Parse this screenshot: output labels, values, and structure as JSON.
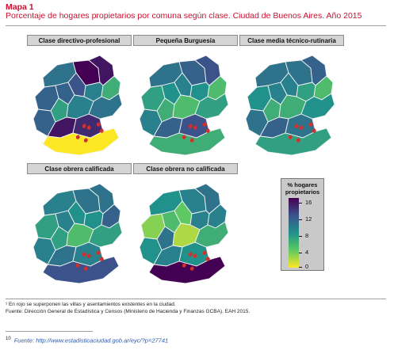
{
  "header": {
    "title": "Mapa 1",
    "subtitle": "Porcentaje de hogares propietarios por comuna según clase. Ciudad de Buenos Aires. Año 2015"
  },
  "panels": [
    {
      "label": "Clase directivo-profesional",
      "values": [
        10,
        16,
        15,
        11,
        11,
        12,
        9,
        6,
        7,
        9,
        10,
        11,
        15,
        14,
        0
      ]
    },
    {
      "label": "Pequeña Burguesía",
      "values": [
        10,
        11,
        12,
        7,
        8,
        9,
        8,
        5,
        6,
        5,
        7,
        9,
        11,
        12,
        6
      ]
    },
    {
      "label": "Clase media técnico-rutinaria",
      "values": [
        10,
        10,
        11,
        8,
        9,
        9,
        7,
        5,
        6,
        6,
        8,
        10,
        11,
        10,
        7
      ]
    },
    {
      "label": "Clase obrera calificada",
      "values": [
        9,
        10,
        10,
        7,
        9,
        8,
        8,
        11,
        7,
        5,
        7,
        9,
        10,
        9,
        12
      ]
    },
    {
      "label": "Clase obrera no calificada",
      "values": [
        8,
        9,
        10,
        3,
        5,
        4,
        9,
        9,
        10,
        2,
        6,
        8,
        9,
        8,
        16
      ]
    }
  ],
  "legend": {
    "title_lines": [
      "% hogares",
      "propietarios"
    ],
    "ticks": [
      "16",
      "12",
      "8",
      "4",
      "0"
    ],
    "min": 0,
    "max": 16,
    "colors": [
      "#440154",
      "#3b528b",
      "#21918c",
      "#5ec962",
      "#fde725"
    ]
  },
  "villas_color": "#d0312d",
  "notes": {
    "line1": "¹ En rojo se superponen las villas y asentamientos existentes en la ciudad.",
    "line2": "Fuente: Dirección General de Estadística y Censos (Ministerio de Hacienda y Finanzas GCBA). EAH 2015.",
    "ref_number": "10",
    "link": "Fuente: http://www.estadisticaciudad.gob.ar/eyc/?p=27741"
  }
}
